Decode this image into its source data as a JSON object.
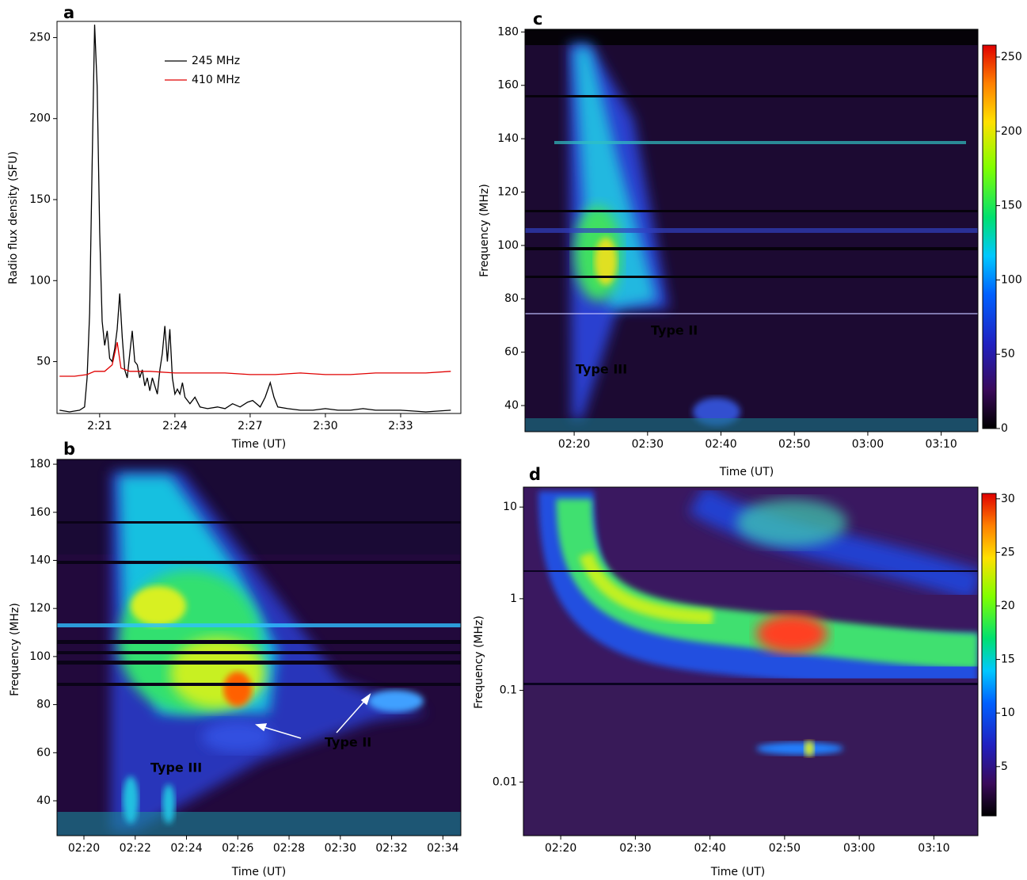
{
  "chart_data": [
    {
      "type": "line",
      "panel": "a",
      "xlabel": "Time (UT)",
      "ylabel": "Radio flux density (SFU)",
      "xlim": [
        19.3,
        35.4
      ],
      "ylim": [
        18,
        260
      ],
      "xticks": [
        {
          "value": 21,
          "label": "2:21"
        },
        {
          "value": 24,
          "label": "2:24"
        },
        {
          "value": 27,
          "label": "2:27"
        },
        {
          "value": 30,
          "label": "2:30"
        },
        {
          "value": 33,
          "label": "2:33"
        }
      ],
      "yticks": [
        50,
        100,
        150,
        200,
        250
      ],
      "series": [
        {
          "name": "245 MHz",
          "color": "#000000",
          "x": [
            19.4,
            19.8,
            20.2,
            20.4,
            20.5,
            20.6,
            20.7,
            20.8,
            20.9,
            21.0,
            21.1,
            21.2,
            21.3,
            21.4,
            21.5,
            21.6,
            21.7,
            21.8,
            21.9,
            22.0,
            22.1,
            22.2,
            22.3,
            22.4,
            22.5,
            22.6,
            22.7,
            22.8,
            22.9,
            23.0,
            23.1,
            23.2,
            23.3,
            23.4,
            23.5,
            23.6,
            23.7,
            23.8,
            23.9,
            24.0,
            24.1,
            24.2,
            24.3,
            24.4,
            24.6,
            24.8,
            25.0,
            25.3,
            25.7,
            26.0,
            26.3,
            26.6,
            26.9,
            27.1,
            27.4,
            27.6,
            27.8,
            27.95,
            28.1,
            28.5,
            29.0,
            29.5,
            30.0,
            30.5,
            31.0,
            31.5,
            32.0,
            33.0,
            34.0,
            35.0
          ],
          "values": [
            20,
            19,
            20,
            22,
            40,
            80,
            170,
            258,
            220,
            130,
            75,
            60,
            69,
            52,
            50,
            58,
            70,
            92,
            65,
            45,
            40,
            55,
            69,
            50,
            48,
            40,
            45,
            35,
            40,
            32,
            40,
            35,
            30,
            45,
            55,
            72,
            50,
            70,
            40,
            30,
            33,
            30,
            37,
            28,
            24,
            28,
            22,
            21,
            22,
            21,
            24,
            22,
            25,
            26,
            22,
            28,
            37,
            28,
            22,
            21,
            20,
            20,
            21,
            20,
            20,
            21,
            20,
            20,
            19,
            20
          ]
        },
        {
          "name": "410 MHz",
          "color": "#e00000",
          "x": [
            19.4,
            20.0,
            20.5,
            20.8,
            21.2,
            21.5,
            21.7,
            21.85,
            22.2,
            23.0,
            24.0,
            25.0,
            26.0,
            27.0,
            28.0,
            29.0,
            30.0,
            31.0,
            32.0,
            33.0,
            34.0,
            35.0
          ],
          "values": [
            41,
            41,
            42,
            44,
            44,
            48,
            62,
            46,
            44,
            44,
            43,
            43,
            43,
            42,
            42,
            43,
            42,
            42,
            43,
            43,
            43,
            44
          ]
        }
      ]
    },
    {
      "type": "spectrogram",
      "panel": "b",
      "xlabel": "Time (UT)",
      "ylabel": "Frequency (MHz)",
      "xlim": [
        18.95,
        34.7
      ],
      "ylim": [
        25.5,
        182
      ],
      "xticks": [
        {
          "value": 20,
          "label": "02:20"
        },
        {
          "value": 22,
          "label": "02:22"
        },
        {
          "value": 24,
          "label": "02:24"
        },
        {
          "value": 26,
          "label": "02:26"
        },
        {
          "value": 28,
          "label": "02:28"
        },
        {
          "value": 30,
          "label": "02:30"
        },
        {
          "value": 32,
          "label": "02:32"
        },
        {
          "value": 34,
          "label": "02:34"
        }
      ],
      "yticks": [
        40,
        60,
        80,
        100,
        120,
        140,
        160,
        180
      ],
      "annotations": [
        "Type III",
        "Type II"
      ]
    },
    {
      "type": "spectrogram",
      "panel": "c",
      "xlabel": "Time (UT)",
      "ylabel": "Frequency (MHz)",
      "xlim": [
        13.3,
        75
      ],
      "ylim": [
        30.2,
        181
      ],
      "xticks": [
        {
          "value": 20,
          "label": "02:20"
        },
        {
          "value": 30,
          "label": "02:30"
        },
        {
          "value": 40,
          "label": "02:40"
        },
        {
          "value": 50,
          "label": "02:50"
        },
        {
          "value": 60,
          "label": "03:00"
        },
        {
          "value": 70,
          "label": "03:10"
        }
      ],
      "yticks": [
        40,
        60,
        80,
        100,
        120,
        140,
        160,
        180
      ],
      "colorbar": {
        "lim": [
          0,
          258
        ],
        "ticks": [
          0,
          50,
          100,
          150,
          200,
          250
        ]
      },
      "annotations": [
        "Type II",
        "Type III"
      ]
    },
    {
      "type": "spectrogram",
      "panel": "d",
      "xlabel": "Time (UT)",
      "ylabel": "Frequency (MHz)",
      "xlim": [
        15,
        75.9
      ],
      "ylim": [
        0.0026,
        16.5
      ],
      "log_y": true,
      "xticks": [
        {
          "value": 20,
          "label": "02:20"
        },
        {
          "value": 30,
          "label": "02:30"
        },
        {
          "value": 40,
          "label": "02:40"
        },
        {
          "value": 50,
          "label": "02:50"
        },
        {
          "value": 60,
          "label": "03:00"
        },
        {
          "value": 70,
          "label": "03:10"
        }
      ],
      "yticks": [
        0.01,
        0.1,
        1,
        10
      ],
      "colorbar": {
        "lim": [
          0.4,
          30.5
        ],
        "ticks": [
          5,
          10,
          15,
          20,
          25,
          30
        ]
      }
    }
  ]
}
